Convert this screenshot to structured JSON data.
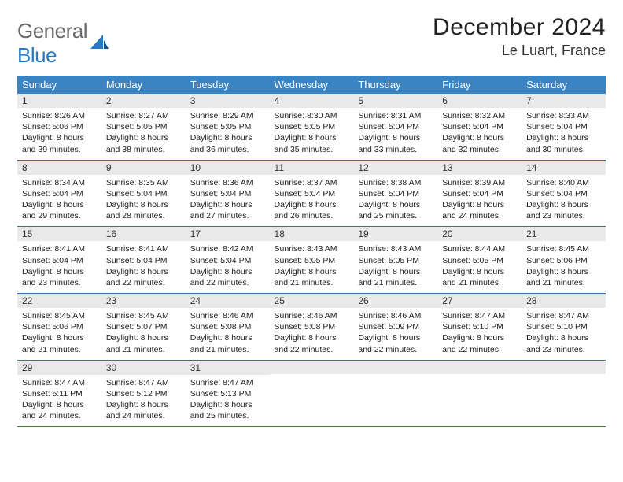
{
  "logo": {
    "general": "General",
    "blue": "Blue"
  },
  "header": {
    "month_title": "December 2024",
    "location": "Le Luart, France"
  },
  "colors": {
    "header_bg": "#3b84c4",
    "header_fg": "#ffffff",
    "daynum_bg": "#e9e9e9",
    "row_border": "#3b6da0",
    "logo_general": "#6a6a6a",
    "logo_blue": "#2a7ac0"
  },
  "weekdays": [
    "Sunday",
    "Monday",
    "Tuesday",
    "Wednesday",
    "Thursday",
    "Friday",
    "Saturday"
  ],
  "weeks": [
    [
      {
        "num": "1",
        "sunrise": "Sunrise: 8:26 AM",
        "sunset": "Sunset: 5:06 PM",
        "daylight1": "Daylight: 8 hours",
        "daylight2": "and 39 minutes."
      },
      {
        "num": "2",
        "sunrise": "Sunrise: 8:27 AM",
        "sunset": "Sunset: 5:05 PM",
        "daylight1": "Daylight: 8 hours",
        "daylight2": "and 38 minutes."
      },
      {
        "num": "3",
        "sunrise": "Sunrise: 8:29 AM",
        "sunset": "Sunset: 5:05 PM",
        "daylight1": "Daylight: 8 hours",
        "daylight2": "and 36 minutes."
      },
      {
        "num": "4",
        "sunrise": "Sunrise: 8:30 AM",
        "sunset": "Sunset: 5:05 PM",
        "daylight1": "Daylight: 8 hours",
        "daylight2": "and 35 minutes."
      },
      {
        "num": "5",
        "sunrise": "Sunrise: 8:31 AM",
        "sunset": "Sunset: 5:04 PM",
        "daylight1": "Daylight: 8 hours",
        "daylight2": "and 33 minutes."
      },
      {
        "num": "6",
        "sunrise": "Sunrise: 8:32 AM",
        "sunset": "Sunset: 5:04 PM",
        "daylight1": "Daylight: 8 hours",
        "daylight2": "and 32 minutes."
      },
      {
        "num": "7",
        "sunrise": "Sunrise: 8:33 AM",
        "sunset": "Sunset: 5:04 PM",
        "daylight1": "Daylight: 8 hours",
        "daylight2": "and 30 minutes."
      }
    ],
    [
      {
        "num": "8",
        "sunrise": "Sunrise: 8:34 AM",
        "sunset": "Sunset: 5:04 PM",
        "daylight1": "Daylight: 8 hours",
        "daylight2": "and 29 minutes."
      },
      {
        "num": "9",
        "sunrise": "Sunrise: 8:35 AM",
        "sunset": "Sunset: 5:04 PM",
        "daylight1": "Daylight: 8 hours",
        "daylight2": "and 28 minutes."
      },
      {
        "num": "10",
        "sunrise": "Sunrise: 8:36 AM",
        "sunset": "Sunset: 5:04 PM",
        "daylight1": "Daylight: 8 hours",
        "daylight2": "and 27 minutes."
      },
      {
        "num": "11",
        "sunrise": "Sunrise: 8:37 AM",
        "sunset": "Sunset: 5:04 PM",
        "daylight1": "Daylight: 8 hours",
        "daylight2": "and 26 minutes."
      },
      {
        "num": "12",
        "sunrise": "Sunrise: 8:38 AM",
        "sunset": "Sunset: 5:04 PM",
        "daylight1": "Daylight: 8 hours",
        "daylight2": "and 25 minutes."
      },
      {
        "num": "13",
        "sunrise": "Sunrise: 8:39 AM",
        "sunset": "Sunset: 5:04 PM",
        "daylight1": "Daylight: 8 hours",
        "daylight2": "and 24 minutes."
      },
      {
        "num": "14",
        "sunrise": "Sunrise: 8:40 AM",
        "sunset": "Sunset: 5:04 PM",
        "daylight1": "Daylight: 8 hours",
        "daylight2": "and 23 minutes."
      }
    ],
    [
      {
        "num": "15",
        "sunrise": "Sunrise: 8:41 AM",
        "sunset": "Sunset: 5:04 PM",
        "daylight1": "Daylight: 8 hours",
        "daylight2": "and 23 minutes."
      },
      {
        "num": "16",
        "sunrise": "Sunrise: 8:41 AM",
        "sunset": "Sunset: 5:04 PM",
        "daylight1": "Daylight: 8 hours",
        "daylight2": "and 22 minutes."
      },
      {
        "num": "17",
        "sunrise": "Sunrise: 8:42 AM",
        "sunset": "Sunset: 5:04 PM",
        "daylight1": "Daylight: 8 hours",
        "daylight2": "and 22 minutes."
      },
      {
        "num": "18",
        "sunrise": "Sunrise: 8:43 AM",
        "sunset": "Sunset: 5:05 PM",
        "daylight1": "Daylight: 8 hours",
        "daylight2": "and 21 minutes."
      },
      {
        "num": "19",
        "sunrise": "Sunrise: 8:43 AM",
        "sunset": "Sunset: 5:05 PM",
        "daylight1": "Daylight: 8 hours",
        "daylight2": "and 21 minutes."
      },
      {
        "num": "20",
        "sunrise": "Sunrise: 8:44 AM",
        "sunset": "Sunset: 5:05 PM",
        "daylight1": "Daylight: 8 hours",
        "daylight2": "and 21 minutes."
      },
      {
        "num": "21",
        "sunrise": "Sunrise: 8:45 AM",
        "sunset": "Sunset: 5:06 PM",
        "daylight1": "Daylight: 8 hours",
        "daylight2": "and 21 minutes."
      }
    ],
    [
      {
        "num": "22",
        "sunrise": "Sunrise: 8:45 AM",
        "sunset": "Sunset: 5:06 PM",
        "daylight1": "Daylight: 8 hours",
        "daylight2": "and 21 minutes."
      },
      {
        "num": "23",
        "sunrise": "Sunrise: 8:45 AM",
        "sunset": "Sunset: 5:07 PM",
        "daylight1": "Daylight: 8 hours",
        "daylight2": "and 21 minutes."
      },
      {
        "num": "24",
        "sunrise": "Sunrise: 8:46 AM",
        "sunset": "Sunset: 5:08 PM",
        "daylight1": "Daylight: 8 hours",
        "daylight2": "and 21 minutes."
      },
      {
        "num": "25",
        "sunrise": "Sunrise: 8:46 AM",
        "sunset": "Sunset: 5:08 PM",
        "daylight1": "Daylight: 8 hours",
        "daylight2": "and 22 minutes."
      },
      {
        "num": "26",
        "sunrise": "Sunrise: 8:46 AM",
        "sunset": "Sunset: 5:09 PM",
        "daylight1": "Daylight: 8 hours",
        "daylight2": "and 22 minutes."
      },
      {
        "num": "27",
        "sunrise": "Sunrise: 8:47 AM",
        "sunset": "Sunset: 5:10 PM",
        "daylight1": "Daylight: 8 hours",
        "daylight2": "and 22 minutes."
      },
      {
        "num": "28",
        "sunrise": "Sunrise: 8:47 AM",
        "sunset": "Sunset: 5:10 PM",
        "daylight1": "Daylight: 8 hours",
        "daylight2": "and 23 minutes."
      }
    ],
    [
      {
        "num": "29",
        "sunrise": "Sunrise: 8:47 AM",
        "sunset": "Sunset: 5:11 PM",
        "daylight1": "Daylight: 8 hours",
        "daylight2": "and 24 minutes."
      },
      {
        "num": "30",
        "sunrise": "Sunrise: 8:47 AM",
        "sunset": "Sunset: 5:12 PM",
        "daylight1": "Daylight: 8 hours",
        "daylight2": "and 24 minutes."
      },
      {
        "num": "31",
        "sunrise": "Sunrise: 8:47 AM",
        "sunset": "Sunset: 5:13 PM",
        "daylight1": "Daylight: 8 hours",
        "daylight2": "and 25 minutes."
      },
      {
        "empty": true
      },
      {
        "empty": true
      },
      {
        "empty": true
      },
      {
        "empty": true
      }
    ]
  ]
}
